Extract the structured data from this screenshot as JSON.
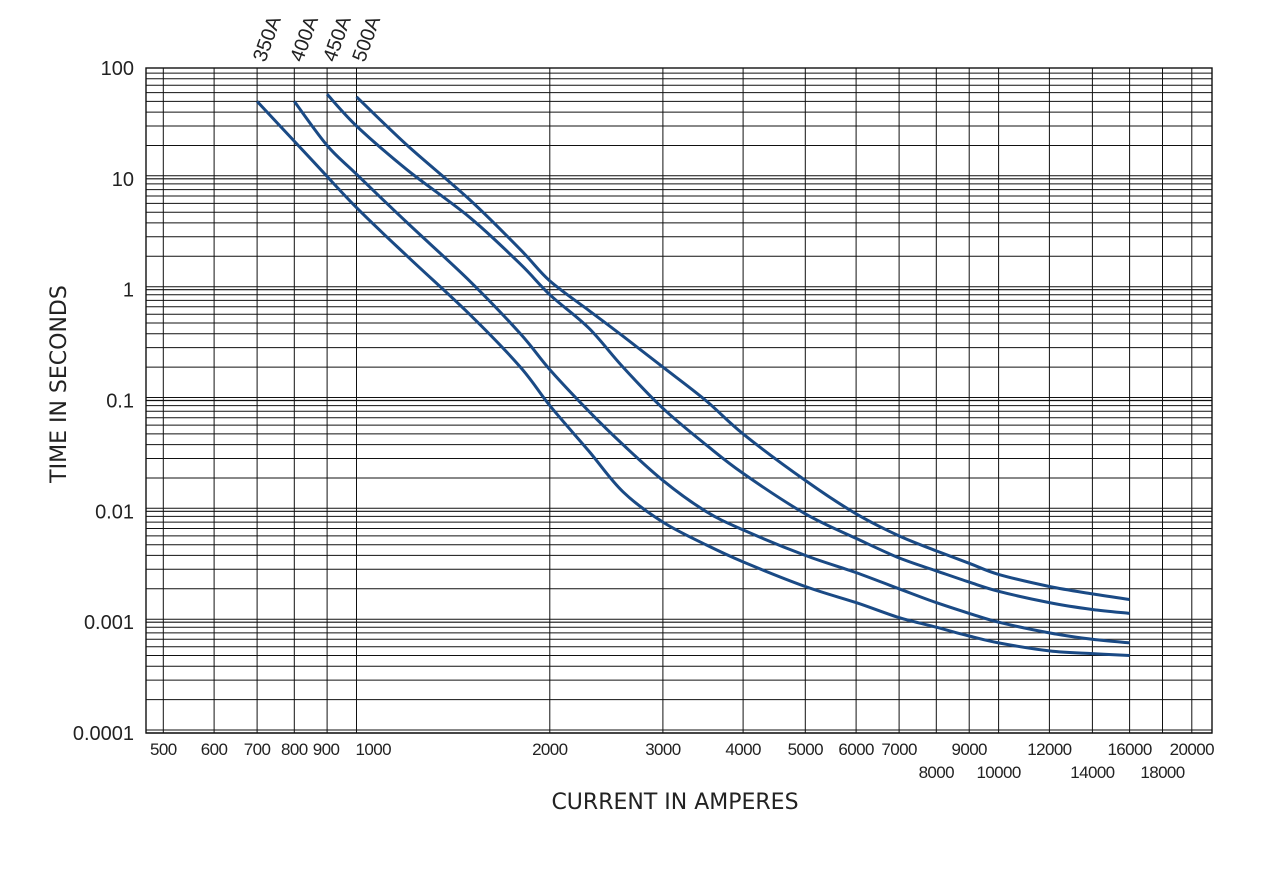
{
  "chart_data": {
    "type": "line",
    "title": "",
    "xlabel": "CURRENT IN AMPERES",
    "ylabel": "TIME IN SECONDS",
    "xscale": "log",
    "yscale": "log",
    "xlim": [
      470,
      21500
    ],
    "ylim": [
      0.0001,
      100
    ],
    "grid": true,
    "line_color": "#1a4a85",
    "x_ticks": [
      {
        "value": 500,
        "label": "500",
        "row": 0
      },
      {
        "value": 600,
        "label": "600",
        "row": 0
      },
      {
        "value": 700,
        "label": "700",
        "row": 0
      },
      {
        "value": 800,
        "label": "800",
        "row": 0
      },
      {
        "value": 900,
        "label": "900",
        "row": 0
      },
      {
        "value": 1000,
        "label": "1000",
        "row": 0
      },
      {
        "value": 2000,
        "label": "2000",
        "row": 0
      },
      {
        "value": 3000,
        "label": "3000",
        "row": 0
      },
      {
        "value": 4000,
        "label": "4000",
        "row": 0
      },
      {
        "value": 5000,
        "label": "5000",
        "row": 0
      },
      {
        "value": 6000,
        "label": "6000",
        "row": 0
      },
      {
        "value": 7000,
        "label": "7000",
        "row": 0
      },
      {
        "value": 8000,
        "label": "8000",
        "row": 1
      },
      {
        "value": 9000,
        "label": "9000",
        "row": 0
      },
      {
        "value": 10000,
        "label": "10000",
        "row": 1
      },
      {
        "value": 12000,
        "label": "12000",
        "row": 0
      },
      {
        "value": 14000,
        "label": "14000",
        "row": 1
      },
      {
        "value": 16000,
        "label": "16000",
        "row": 0
      },
      {
        "value": 18000,
        "label": "18000",
        "row": 1
      },
      {
        "value": 20000,
        "label": "20000",
        "row": 0
      }
    ],
    "y_ticks": [
      {
        "value": 100,
        "label": "100"
      },
      {
        "value": 10,
        "label": "10"
      },
      {
        "value": 1,
        "label": "1"
      },
      {
        "value": 0.1,
        "label": "0.1"
      },
      {
        "value": 0.01,
        "label": "0.01"
      },
      {
        "value": 0.001,
        "label": "0.001"
      },
      {
        "value": 0.0001,
        "label": "0.0001"
      }
    ],
    "series": [
      {
        "name": "350A",
        "points": [
          [
            700,
            50
          ],
          [
            850,
            15
          ],
          [
            1000,
            5.5
          ],
          [
            1200,
            2.0
          ],
          [
            1500,
            0.6
          ],
          [
            1800,
            0.2
          ],
          [
            2000,
            0.09
          ],
          [
            2300,
            0.035
          ],
          [
            2600,
            0.015
          ],
          [
            3000,
            0.008
          ],
          [
            3500,
            0.005
          ],
          [
            4000,
            0.0035
          ],
          [
            5000,
            0.0021
          ],
          [
            6000,
            0.0015
          ],
          [
            7000,
            0.0011
          ],
          [
            8000,
            0.0009
          ],
          [
            9000,
            0.00075
          ],
          [
            10000,
            0.00065
          ],
          [
            12000,
            0.00055
          ],
          [
            14000,
            0.00052
          ],
          [
            16000,
            0.0005
          ]
        ]
      },
      {
        "name": "400A",
        "points": [
          [
            800,
            50
          ],
          [
            900,
            20
          ],
          [
            1000,
            11
          ],
          [
            1200,
            4.0
          ],
          [
            1500,
            1.2
          ],
          [
            1800,
            0.4
          ],
          [
            2000,
            0.19
          ],
          [
            2300,
            0.08
          ],
          [
            2600,
            0.04
          ],
          [
            3000,
            0.019
          ],
          [
            3500,
            0.01
          ],
          [
            4000,
            0.0068
          ],
          [
            5000,
            0.004
          ],
          [
            6000,
            0.0028
          ],
          [
            7000,
            0.002
          ],
          [
            8000,
            0.0015
          ],
          [
            9000,
            0.0012
          ],
          [
            10000,
            0.001
          ],
          [
            12000,
            0.0008
          ],
          [
            14000,
            0.0007
          ],
          [
            16000,
            0.00065
          ]
        ]
      },
      {
        "name": "450A",
        "points": [
          [
            900,
            58
          ],
          [
            1000,
            30
          ],
          [
            1200,
            12
          ],
          [
            1500,
            4.5
          ],
          [
            1800,
            1.7
          ],
          [
            2000,
            0.9
          ],
          [
            2300,
            0.45
          ],
          [
            2600,
            0.2
          ],
          [
            3000,
            0.085
          ],
          [
            3500,
            0.04
          ],
          [
            4000,
            0.022
          ],
          [
            5000,
            0.0095
          ],
          [
            6000,
            0.0057
          ],
          [
            7000,
            0.0038
          ],
          [
            8000,
            0.0029
          ],
          [
            9000,
            0.0023
          ],
          [
            10000,
            0.0019
          ],
          [
            12000,
            0.0015
          ],
          [
            14000,
            0.0013
          ],
          [
            16000,
            0.0012
          ]
        ]
      },
      {
        "name": "500A",
        "points": [
          [
            1000,
            55
          ],
          [
            1200,
            20
          ],
          [
            1500,
            6.5
          ],
          [
            1800,
            2.3
          ],
          [
            2000,
            1.2
          ],
          [
            2300,
            0.65
          ],
          [
            2600,
            0.38
          ],
          [
            3000,
            0.2
          ],
          [
            3500,
            0.1
          ],
          [
            4000,
            0.05
          ],
          [
            5000,
            0.019
          ],
          [
            6000,
            0.0095
          ],
          [
            7000,
            0.006
          ],
          [
            8000,
            0.0044
          ],
          [
            9000,
            0.0034
          ],
          [
            10000,
            0.0027
          ],
          [
            12000,
            0.0021
          ],
          [
            14000,
            0.0018
          ],
          [
            16000,
            0.0016
          ]
        ]
      }
    ]
  }
}
